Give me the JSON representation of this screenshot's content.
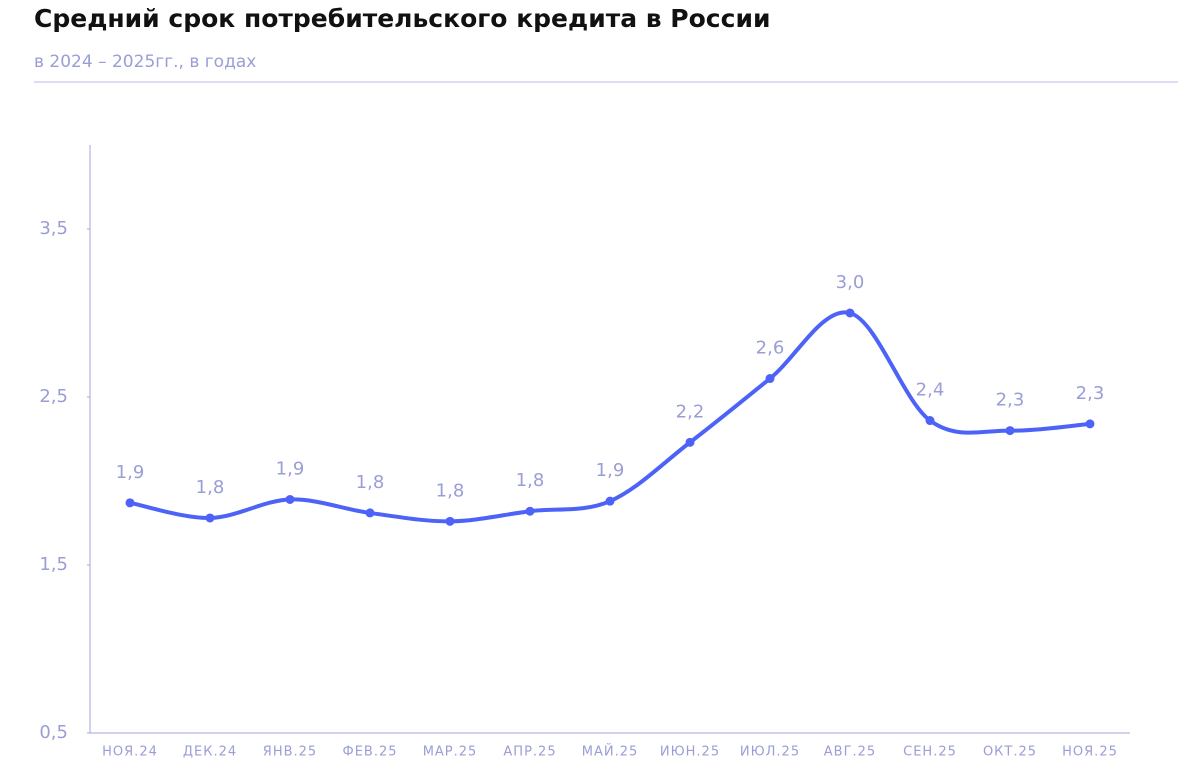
{
  "chart_data": {
    "type": "line",
    "title": "Средний срок потребительского кредита в России",
    "subtitle": "в 2024 – 2025гг., в годах",
    "categories": [
      "НОЯ.24",
      "ДЕК.24",
      "ЯНВ.25",
      "ФЕВ.25",
      "МАР.25",
      "АПР.25",
      "МАЙ.25",
      "ИЮН.25",
      "ИЮЛ.25",
      "АВГ.25",
      "СЕН.25",
      "ОКТ.25",
      "НОЯ.25"
    ],
    "values": [
      1.87,
      1.78,
      1.89,
      1.81,
      1.76,
      1.82,
      1.88,
      2.23,
      2.61,
      3.0,
      2.36,
      2.3,
      2.34
    ],
    "value_labels": [
      "1,9",
      "1,8",
      "1,9",
      "1,8",
      "1,8",
      "1,8",
      "1,9",
      "2,2",
      "2,6",
      "3,0",
      "2,4",
      "2,3",
      "2,3"
    ],
    "color": "#4d63f7",
    "ylim": [
      0.5,
      4.0
    ],
    "yticks": [
      {
        "value": 0.5,
        "label": "0,5"
      },
      {
        "value": 1.5,
        "label": "1,5"
      },
      {
        "value": 2.5,
        "label": "2,5"
      },
      {
        "value": 3.5,
        "label": "3,5"
      }
    ],
    "grid": false
  }
}
